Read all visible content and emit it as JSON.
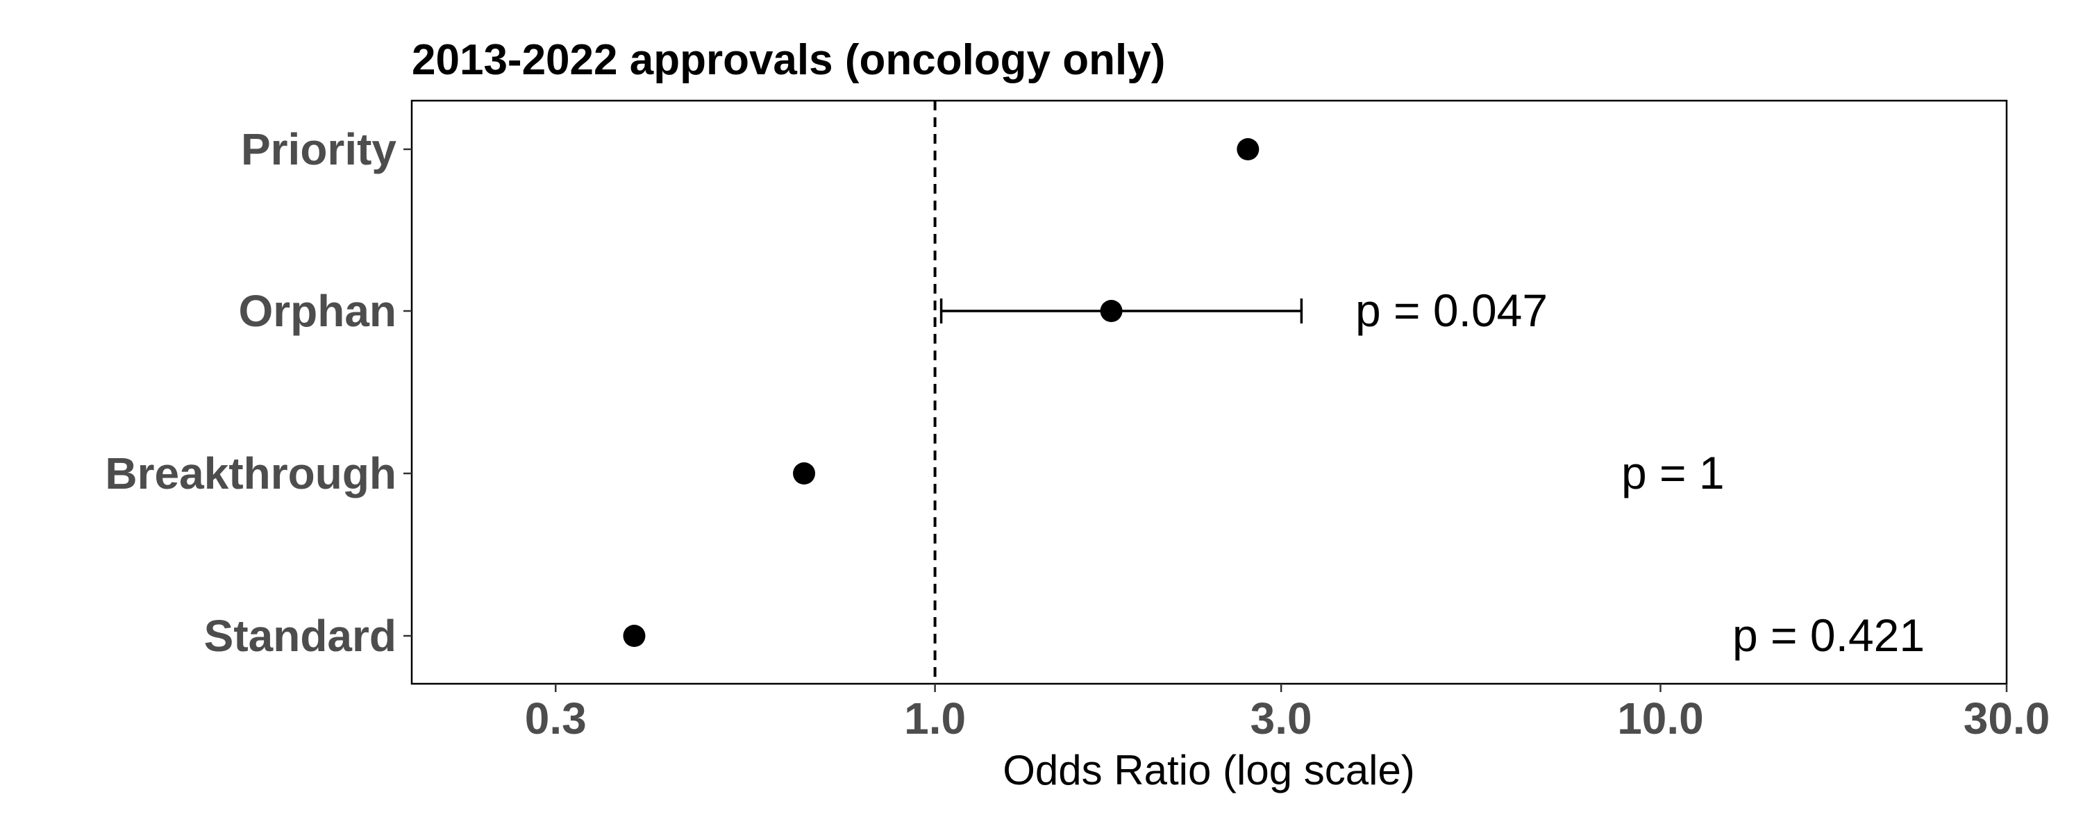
{
  "chart_data": {
    "type": "scatter",
    "title": "2013-2022 approvals (oncology only)",
    "xlabel": "Odds Ratio (log scale)",
    "ylabel": "",
    "x_scale": "log",
    "xlim": [
      0.19,
      30
    ],
    "x_ticks": [
      0.3,
      1.0,
      3.0,
      10.0,
      30.0
    ],
    "x_tick_labels": [
      "0.3",
      "1.0",
      "3.0",
      "10.0",
      "30.0"
    ],
    "reference_line": 1.0,
    "grid": false,
    "categories": [
      "Priority",
      "Orphan",
      "Breakthrough",
      "Standard"
    ],
    "points": [
      {
        "category": "Priority",
        "odds_ratio": 2.7,
        "ci": null,
        "p_label": ""
      },
      {
        "category": "Orphan",
        "odds_ratio": 1.75,
        "ci": [
          1.02,
          3.2
        ],
        "p_label": "p = 0.047"
      },
      {
        "category": "Breakthrough",
        "odds_ratio": 0.66,
        "ci": null,
        "p_label": "p = 1"
      },
      {
        "category": "Standard",
        "odds_ratio": 0.385,
        "ci": null,
        "p_label": "p = 0.421"
      }
    ],
    "colors": {
      "point": "#000000",
      "axis_text": "#4d4d4d",
      "line": "#000000"
    }
  }
}
